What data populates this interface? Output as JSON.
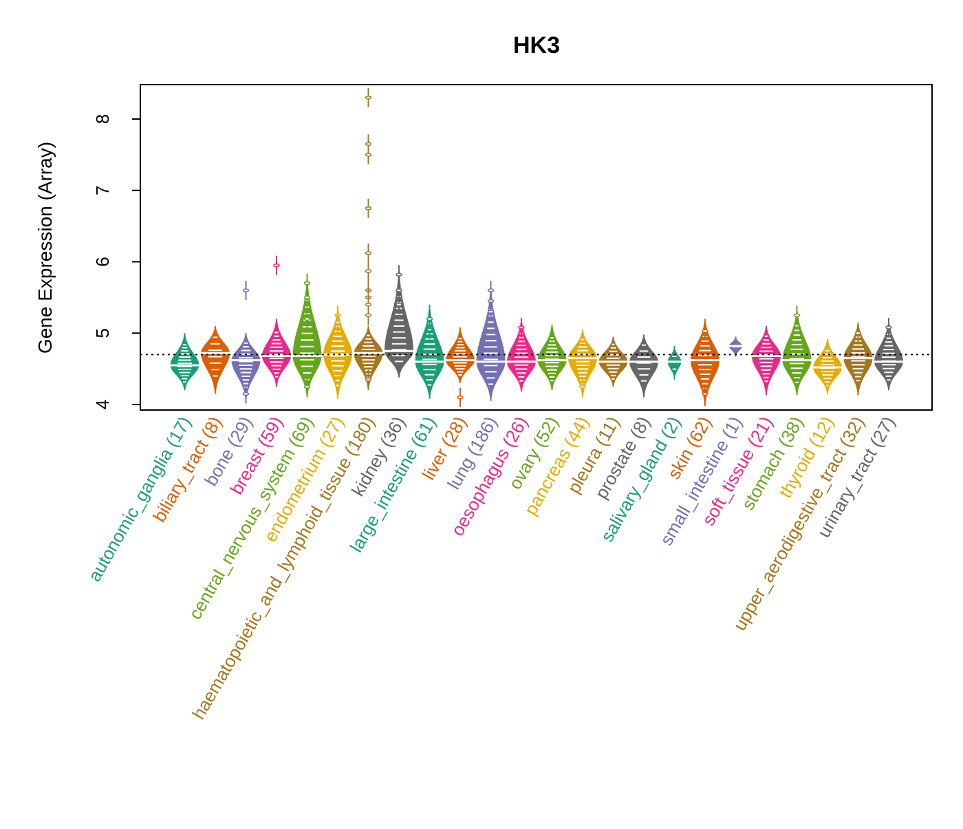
{
  "chart_data": {
    "type": "violin",
    "title": "HK3",
    "xlabel": "",
    "ylabel": "Gene Expression (Array)",
    "ylim": [
      3.92,
      8.45
    ],
    "yticks": [
      4,
      5,
      6,
      7,
      8
    ],
    "reference_line": 4.7,
    "grid": false,
    "palette": [
      "#1B9E77",
      "#D95F02",
      "#7570B3",
      "#E7298A",
      "#66A61E",
      "#E6AB02",
      "#A6761D",
      "#666666"
    ],
    "groups": [
      {
        "name": "autonomic_ganglia",
        "n": 17,
        "label": "autonomic_ganglia (17)",
        "min": 4.2,
        "max": 5.0,
        "median": 4.55,
        "outliers": []
      },
      {
        "name": "biliary_tract",
        "n": 8,
        "label": "biliary_tract (8)",
        "min": 4.15,
        "max": 5.1,
        "median": 4.72,
        "outliers": []
      },
      {
        "name": "bone",
        "n": 29,
        "label": "bone (29)",
        "min": 4.05,
        "max": 5.0,
        "median": 4.62,
        "outliers": [
          5.6,
          4.15
        ]
      },
      {
        "name": "breast",
        "n": 59,
        "label": "breast (59)",
        "min": 4.25,
        "max": 5.2,
        "median": 4.68,
        "outliers": [
          5.95
        ]
      },
      {
        "name": "central_nervous_system",
        "n": 69,
        "label": "central_nervous_system (69)",
        "min": 4.1,
        "max": 5.8,
        "median": 4.68,
        "outliers": [
          5.7,
          5.5,
          5.2,
          4.25
        ]
      },
      {
        "name": "endometrium",
        "n": 27,
        "label": "endometrium (27)",
        "min": 4.08,
        "max": 5.35,
        "median": 4.7,
        "outliers": [
          5.25,
          5.15
        ]
      },
      {
        "name": "haematopoietic_and_lymphoid_tissue",
        "n": 180,
        "label": "haematopoietic_and_lymphoid_tissue (180)",
        "min": 4.2,
        "max": 5.1,
        "median": 4.72,
        "outliers": [
          8.3,
          7.65,
          7.5,
          6.75,
          6.12,
          5.87,
          5.6,
          5.5,
          5.4,
          5.25,
          4.35
        ]
      },
      {
        "name": "kidney",
        "n": 36,
        "label": "kidney (36)",
        "min": 4.38,
        "max": 5.9,
        "median": 4.75,
        "outliers": [
          5.82,
          5.6,
          5.4
        ]
      },
      {
        "name": "large_intestine",
        "n": 61,
        "label": "large_intestine (61)",
        "min": 4.08,
        "max": 5.4,
        "median": 4.6,
        "outliers": [
          5.2,
          5.05
        ]
      },
      {
        "name": "liver",
        "n": 28,
        "label": "liver (28)",
        "min": 4.3,
        "max": 5.08,
        "median": 4.62,
        "outliers": [
          4.1
        ]
      },
      {
        "name": "lung",
        "n": 186,
        "label": "lung (186)",
        "min": 4.05,
        "max": 5.65,
        "median": 4.6,
        "outliers": [
          5.6,
          5.45,
          5.3
        ]
      },
      {
        "name": "oesophagus",
        "n": 26,
        "label": "oesophagus (26)",
        "min": 4.18,
        "max": 5.2,
        "median": 4.6,
        "outliers": [
          5.08
        ]
      },
      {
        "name": "ovary",
        "n": 52,
        "label": "ovary (52)",
        "min": 4.2,
        "max": 5.12,
        "median": 4.62,
        "outliers": []
      },
      {
        "name": "pancreas",
        "n": 44,
        "label": "pancreas (44)",
        "min": 4.1,
        "max": 5.05,
        "median": 4.65,
        "outliers": [
          4.25
        ]
      },
      {
        "name": "pleura",
        "n": 11,
        "label": "pleura (11)",
        "min": 4.25,
        "max": 4.95,
        "median": 4.6,
        "outliers": []
      },
      {
        "name": "prostate",
        "n": 8,
        "label": "prostate (8)",
        "min": 4.1,
        "max": 4.98,
        "median": 4.6,
        "outliers": []
      },
      {
        "name": "salivary_gland",
        "n": 2,
        "label": "salivary_gland (2)",
        "min": 4.35,
        "max": 4.82,
        "median": 4.6,
        "outliers": []
      },
      {
        "name": "skin",
        "n": 62,
        "label": "skin (62)",
        "min": 3.98,
        "max": 5.2,
        "median": 4.62,
        "outliers": [
          5.03,
          4.15
        ]
      },
      {
        "name": "small_intestine",
        "n": 1,
        "label": "small_intestine (1)",
        "min": 4.67,
        "max": 4.95,
        "median": 4.82,
        "outliers": []
      },
      {
        "name": "soft_tissue",
        "n": 21,
        "label": "soft_tissue (21)",
        "min": 4.13,
        "max": 5.1,
        "median": 4.68,
        "outliers": []
      },
      {
        "name": "stomach",
        "n": 38,
        "label": "stomach (38)",
        "min": 4.13,
        "max": 5.35,
        "median": 4.62,
        "outliers": [
          5.25
        ]
      },
      {
        "name": "thyroid",
        "n": 12,
        "label": "thyroid (12)",
        "min": 4.15,
        "max": 4.92,
        "median": 4.52,
        "outliers": []
      },
      {
        "name": "upper_aerodigestive_tract",
        "n": 32,
        "label": "upper_aerodigestive_tract (32)",
        "min": 4.13,
        "max": 5.15,
        "median": 4.65,
        "outliers": [
          5.0
        ]
      },
      {
        "name": "urinary_tract",
        "n": 27,
        "label": "urinary_tract (27)",
        "min": 4.2,
        "max": 5.18,
        "median": 4.6,
        "outliers": [
          5.08
        ]
      }
    ]
  }
}
